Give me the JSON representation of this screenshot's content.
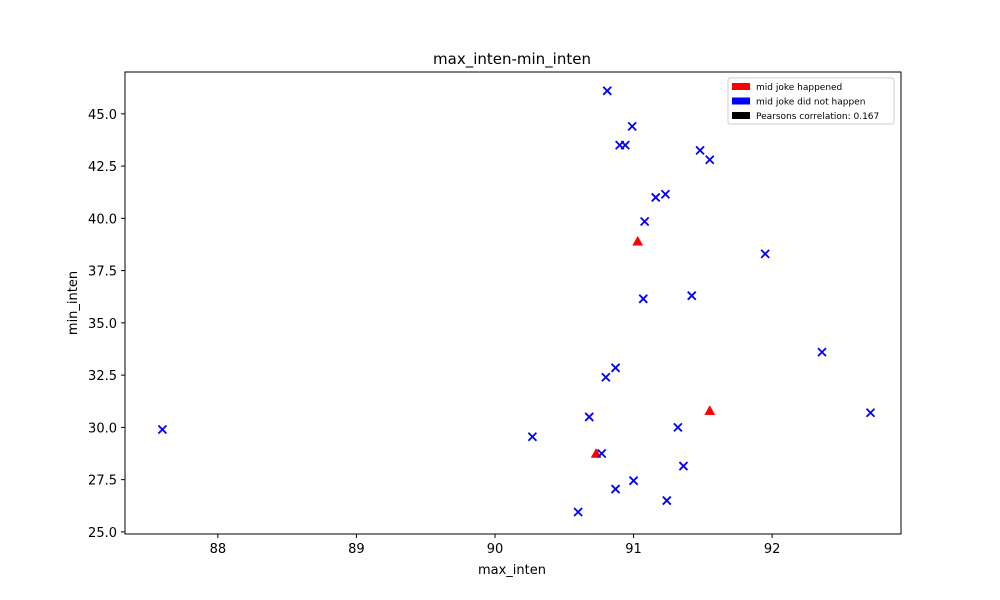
{
  "chart_data": {
    "type": "scatter",
    "title": "max_inten-min_inten",
    "xlabel": "max_inten",
    "ylabel": "min_inten",
    "xlim": [
      87.33,
      92.93
    ],
    "ylim": [
      24.9,
      47.0
    ],
    "xticks": [
      88,
      89,
      90,
      91,
      92
    ],
    "xtick_labels": [
      "88",
      "89",
      "90",
      "91",
      "92"
    ],
    "yticks": [
      25.0,
      27.5,
      30.0,
      32.5,
      35.0,
      37.5,
      40.0,
      42.5,
      45.0
    ],
    "ytick_labels": [
      "25.0",
      "27.5",
      "30.0",
      "32.5",
      "35.0",
      "37.5",
      "40.0",
      "42.5",
      "45.0"
    ],
    "grid": false,
    "legend_position": "top-right",
    "legend": [
      {
        "label": "mid joke happened",
        "color": "#ff0000"
      },
      {
        "label": "mid joke did not happen",
        "color": "#0000ff"
      },
      {
        "label": "Pearsons correlation: 0.167",
        "color": "#000000"
      }
    ],
    "series": [
      {
        "marker": "triangle",
        "color": "#ff0000",
        "points": [
          {
            "x": 91.03,
            "y": 38.9
          },
          {
            "x": 91.55,
            "y": 30.8
          },
          {
            "x": 90.73,
            "y": 28.75
          }
        ]
      },
      {
        "marker": "x",
        "color": "#0000ff",
        "points": [
          {
            "x": 87.6,
            "y": 29.9
          },
          {
            "x": 90.27,
            "y": 29.55
          },
          {
            "x": 90.6,
            "y": 25.95
          },
          {
            "x": 90.68,
            "y": 30.5
          },
          {
            "x": 90.77,
            "y": 28.75
          },
          {
            "x": 90.8,
            "y": 32.4
          },
          {
            "x": 90.81,
            "y": 46.1
          },
          {
            "x": 90.87,
            "y": 27.05
          },
          {
            "x": 90.87,
            "y": 32.85
          },
          {
            "x": 90.9,
            "y": 43.5
          },
          {
            "x": 90.94,
            "y": 43.5
          },
          {
            "x": 90.99,
            "y": 44.4
          },
          {
            "x": 91.0,
            "y": 27.45
          },
          {
            "x": 91.07,
            "y": 36.15
          },
          {
            "x": 91.08,
            "y": 39.85
          },
          {
            "x": 91.16,
            "y": 41.0
          },
          {
            "x": 91.23,
            "y": 41.15
          },
          {
            "x": 91.24,
            "y": 26.5
          },
          {
            "x": 91.32,
            "y": 30.0
          },
          {
            "x": 91.36,
            "y": 28.15
          },
          {
            "x": 91.42,
            "y": 36.3
          },
          {
            "x": 91.48,
            "y": 43.25
          },
          {
            "x": 91.55,
            "y": 42.8
          },
          {
            "x": 91.95,
            "y": 38.3
          },
          {
            "x": 92.36,
            "y": 33.6
          },
          {
            "x": 92.71,
            "y": 30.7
          }
        ]
      }
    ]
  }
}
